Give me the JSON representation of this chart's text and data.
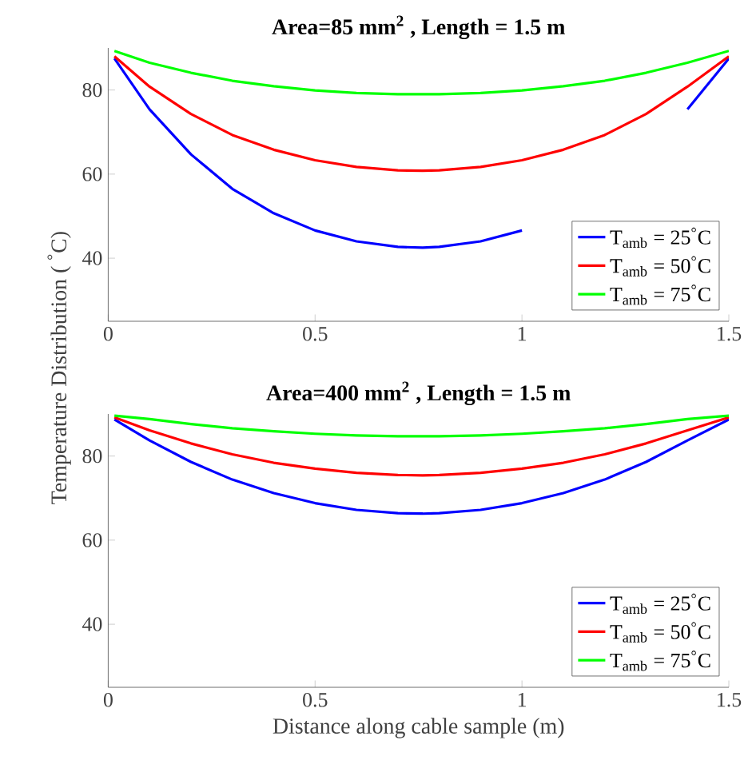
{
  "chart_data": [
    {
      "type": "line",
      "title": "Area=85 mm$^{2}$ , Length = 1.5 m",
      "ylabel": "Temperature Distribution ( $^{°}$C)",
      "x": [
        0.015,
        0.1,
        0.2,
        0.3,
        0.4,
        0.5,
        0.6,
        0.7,
        0.76,
        0.8,
        0.9,
        1.0,
        1.1,
        1.2,
        1.3,
        1.4,
        1.5
      ],
      "series": [
        {
          "name": "T$_{amb}$ = 25$^{°}$C",
          "color": "#0000ff",
          "values": [
            87.5,
            75.4,
            64.7,
            56.5,
            50.7,
            46.6,
            44.0,
            42.7,
            42.5,
            42.7,
            44.0,
            46.6,
            null,
            null,
            null,
            75.4,
            87.5
          ]
        },
        {
          "name": "T$_{amb}$ = 50$^{°}$C",
          "color": "#ff0000",
          "values": [
            88.0,
            80.8,
            74.3,
            69.3,
            65.8,
            63.3,
            61.7,
            60.9,
            60.8,
            60.9,
            61.7,
            63.3,
            65.8,
            69.3,
            74.3,
            80.8,
            88.0
          ]
        },
        {
          "name": "T$_{amb}$ = 75$^{°}$C",
          "color": "#00ff00",
          "values": [
            89.3,
            86.5,
            84.1,
            82.2,
            80.9,
            79.9,
            79.3,
            79.0,
            79.0,
            79.0,
            79.3,
            79.9,
            80.9,
            82.2,
            84.1,
            86.5,
            89.3
          ]
        }
      ],
      "xlim": [
        0,
        1.5
      ],
      "ylim": [
        25,
        90
      ],
      "xticks": [
        0,
        0.5,
        1,
        1.5
      ],
      "yticks": [
        40,
        60,
        80
      ],
      "legend": "bottom right",
      "grid": false
    },
    {
      "type": "line",
      "title": "Area=400 mm$^{2}$ , Length = 1.5 m",
      "xlabel": "Distance along cable sample (m)",
      "x": [
        0.015,
        0.1,
        0.2,
        0.3,
        0.4,
        0.5,
        0.6,
        0.7,
        0.76,
        0.8,
        0.9,
        1.0,
        1.1,
        1.2,
        1.3,
        1.4,
        1.5
      ],
      "series": [
        {
          "name": "T$_{amb}$ = 25$^{°}$C",
          "color": "#0000ff",
          "values": [
            88.7,
            83.7,
            78.6,
            74.4,
            71.2,
            68.8,
            67.2,
            66.4,
            66.3,
            66.4,
            67.2,
            68.8,
            71.2,
            74.4,
            78.6,
            83.7,
            88.7
          ]
        },
        {
          "name": "T$_{amb}$ = 50$^{°}$C",
          "color": "#ff0000",
          "values": [
            89.2,
            86.1,
            83.0,
            80.4,
            78.4,
            77.0,
            76.0,
            75.5,
            75.4,
            75.5,
            76.0,
            77.0,
            78.4,
            80.4,
            83.0,
            86.1,
            89.2
          ]
        },
        {
          "name": "T$_{amb}$ = 75$^{°}$C",
          "color": "#00ff00",
          "values": [
            89.6,
            88.8,
            87.6,
            86.6,
            85.9,
            85.3,
            84.9,
            84.7,
            84.7,
            84.7,
            84.9,
            85.3,
            85.9,
            86.6,
            87.6,
            88.8,
            89.6
          ]
        }
      ],
      "xlim": [
        0,
        1.5
      ],
      "ylim": [
        25,
        90
      ],
      "xticks": [
        0,
        0.5,
        1,
        1.5
      ],
      "yticks": [
        40,
        60,
        80
      ],
      "legend": "bottom right",
      "grid": false
    }
  ]
}
